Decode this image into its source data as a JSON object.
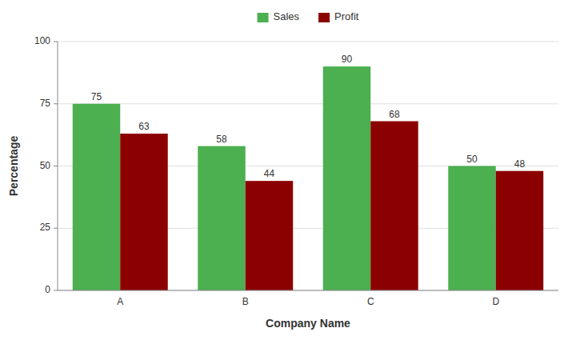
{
  "chart_data": {
    "type": "bar",
    "categories": [
      "A",
      "B",
      "C",
      "D"
    ],
    "series": [
      {
        "name": "Sales",
        "color": "#4CAF50",
        "values": [
          75,
          58,
          90,
          50
        ]
      },
      {
        "name": "Profit",
        "color": "#8B0000",
        "values": [
          63,
          44,
          68,
          48
        ]
      }
    ],
    "xlabel": "Company Name",
    "ylabel": "Percentage",
    "ylim": [
      0,
      100
    ],
    "yticks": [
      0,
      25,
      50,
      75,
      100
    ],
    "grid": true,
    "legend": "top",
    "data_labels": true
  }
}
